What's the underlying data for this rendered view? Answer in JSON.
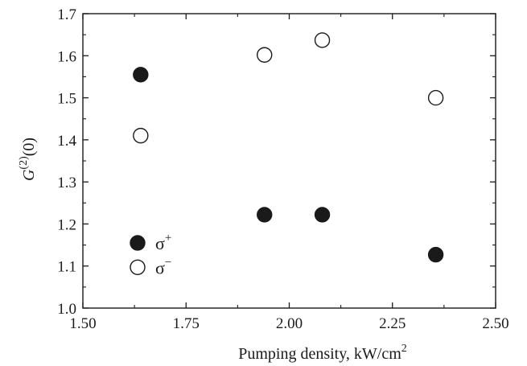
{
  "chart_data": {
    "type": "scatter",
    "xlabel": "Pumping density, kW/cm",
    "xlabel_superscript": "2",
    "ylabel_base": "G",
    "ylabel_superscript": "(2)",
    "ylabel_suffix": "(0)",
    "xlim": [
      1.5,
      2.5
    ],
    "ylim": [
      1.0,
      1.7
    ],
    "x_ticks": [
      1.5,
      1.75,
      2.0,
      2.25,
      2.5
    ],
    "x_tick_labels": [
      "1.50",
      "1.75",
      "2.00",
      "2.25",
      "2.50"
    ],
    "y_ticks": [
      1.0,
      1.1,
      1.2,
      1.3,
      1.4,
      1.5,
      1.6,
      1.7
    ],
    "y_tick_labels": [
      "1.0",
      "1.1",
      "1.2",
      "1.3",
      "1.4",
      "1.5",
      "1.6",
      "1.7"
    ],
    "grid": false,
    "legend_position": "bottom-left",
    "series": [
      {
        "name": "σ+",
        "label_base": "σ",
        "label_superscript": "+",
        "marker": "filled-circle",
        "color": "#1a1a1a",
        "x": [
          1.64,
          1.94,
          2.08,
          2.355
        ],
        "y": [
          1.555,
          1.222,
          1.222,
          1.127
        ]
      },
      {
        "name": "σ−",
        "label_base": "σ",
        "label_superscript": "−",
        "marker": "open-circle",
        "color": "#1a1a1a",
        "x": [
          1.64,
          1.94,
          2.08,
          2.355
        ],
        "y": [
          1.41,
          1.602,
          1.637,
          1.5
        ]
      }
    ]
  }
}
